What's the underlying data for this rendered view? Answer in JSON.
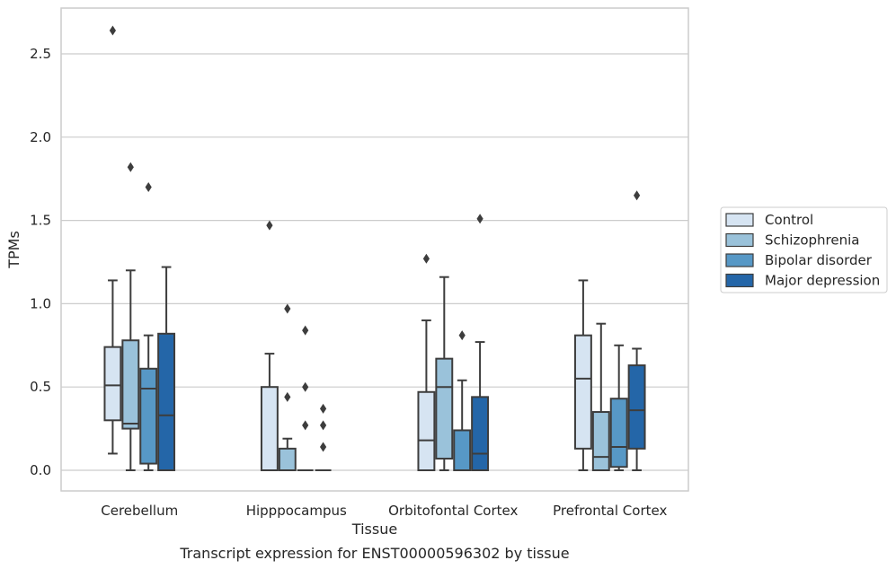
{
  "chart_data": {
    "type": "box",
    "xlabel": "Tissue",
    "ylabel": "TPMs",
    "caption": "Transcript expression for ENST00000596302 by tissue",
    "ylim": [
      -0.13,
      2.78
    ],
    "yticks": [
      0.0,
      0.5,
      1.0,
      1.5,
      2.0,
      2.5
    ],
    "ytick_labels": [
      "0.0",
      "0.5",
      "1.0",
      "1.5",
      "2.0",
      "2.5"
    ],
    "grid": "horizontal",
    "legend_position": "right",
    "categories": [
      "Cerebellum",
      "Hipppocampus",
      "Orbitofontal Cortex",
      "Prefrontal Cortex"
    ],
    "series": [
      {
        "name": "Control",
        "color": "#d6e4f2",
        "boxes": [
          {
            "whislo": 0.1,
            "q1": 0.3,
            "med": 0.51,
            "q3": 0.74,
            "whishi": 1.14,
            "fliers": [
              2.64
            ]
          },
          {
            "whislo": 0.0,
            "q1": 0.0,
            "med": 0.0,
            "q3": 0.5,
            "whishi": 0.7,
            "fliers": [
              1.47
            ]
          },
          {
            "whislo": 0.0,
            "q1": 0.0,
            "med": 0.18,
            "q3": 0.47,
            "whishi": 0.9,
            "fliers": [
              1.27
            ]
          },
          {
            "whislo": 0.0,
            "q1": 0.13,
            "med": 0.55,
            "q3": 0.81,
            "whishi": 1.14,
            "fliers": []
          }
        ]
      },
      {
        "name": "Schizophrenia",
        "color": "#9ac2da",
        "boxes": [
          {
            "whislo": 0.0,
            "q1": 0.25,
            "med": 0.28,
            "q3": 0.78,
            "whishi": 1.2,
            "fliers": [
              1.82
            ]
          },
          {
            "whislo": 0.0,
            "q1": 0.0,
            "med": 0.0,
            "q3": 0.13,
            "whishi": 0.19,
            "fliers": [
              0.44,
              0.97
            ]
          },
          {
            "whislo": 0.0,
            "q1": 0.07,
            "med": 0.5,
            "q3": 0.67,
            "whishi": 1.16,
            "fliers": []
          },
          {
            "whislo": 0.0,
            "q1": 0.0,
            "med": 0.08,
            "q3": 0.35,
            "whishi": 0.88,
            "fliers": []
          }
        ]
      },
      {
        "name": "Bipolar disorder",
        "color": "#5798c6",
        "boxes": [
          {
            "whislo": 0.0,
            "q1": 0.04,
            "med": 0.49,
            "q3": 0.61,
            "whishi": 0.81,
            "fliers": [
              1.7
            ]
          },
          {
            "whislo": 0.0,
            "q1": 0.0,
            "med": 0.0,
            "q3": 0.0,
            "whishi": 0.0,
            "fliers": [
              0.27,
              0.5,
              0.84
            ]
          },
          {
            "whislo": 0.0,
            "q1": 0.0,
            "med": 0.0,
            "q3": 0.24,
            "whishi": 0.54,
            "fliers": [
              0.81
            ]
          },
          {
            "whislo": 0.0,
            "q1": 0.02,
            "med": 0.14,
            "q3": 0.43,
            "whishi": 0.75,
            "fliers": []
          }
        ]
      },
      {
        "name": "Major depression",
        "color": "#2466a8",
        "boxes": [
          {
            "whislo": 0.0,
            "q1": 0.0,
            "med": 0.33,
            "q3": 0.82,
            "whishi": 1.22,
            "fliers": []
          },
          {
            "whislo": 0.0,
            "q1": 0.0,
            "med": 0.0,
            "q3": 0.0,
            "whishi": 0.0,
            "fliers": [
              0.14,
              0.27,
              0.37
            ]
          },
          {
            "whislo": 0.0,
            "q1": 0.0,
            "med": 0.1,
            "q3": 0.44,
            "whishi": 0.77,
            "fliers": [
              1.51
            ]
          },
          {
            "whislo": 0.0,
            "q1": 0.13,
            "med": 0.36,
            "q3": 0.63,
            "whishi": 0.73,
            "fliers": [
              1.65
            ]
          }
        ]
      }
    ]
  }
}
